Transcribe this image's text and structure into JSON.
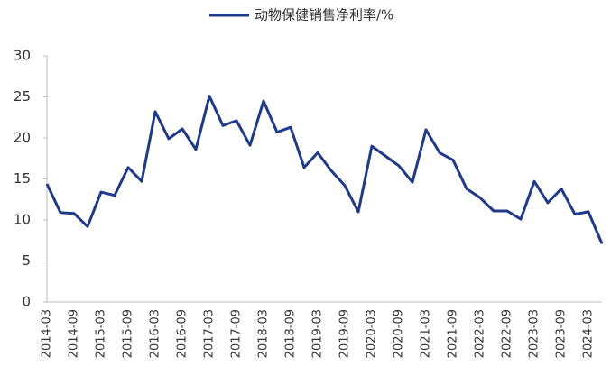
{
  "chart_data": {
    "type": "line",
    "categories": [
      "2014-03",
      null,
      "2014-09",
      null,
      "2015-03",
      null,
      "2015-09",
      null,
      "2016-03",
      null,
      "2016-09",
      null,
      "2017-03",
      null,
      "2017-09",
      null,
      "2018-03",
      null,
      "2018-09",
      null,
      "2019-03",
      null,
      "2019-09",
      null,
      "2020-03",
      null,
      "2020-09",
      null,
      "2021-03",
      null,
      "2021-09",
      null,
      "2022-03",
      null,
      "2022-09",
      null,
      "2023-03",
      null,
      "2023-09",
      null,
      "2024-03",
      null
    ],
    "series": [
      {
        "name": "动物保健销售净利率/%",
        "color": "#1f3a8a",
        "values": [
          14.4,
          10.9,
          10.8,
          9.2,
          13.4,
          13.0,
          16.4,
          14.7,
          23.2,
          19.9,
          21.1,
          18.6,
          25.1,
          21.5,
          22.1,
          19.1,
          24.5,
          20.7,
          21.3,
          16.4,
          18.2,
          16.0,
          14.2,
          11.0,
          19.0,
          17.8,
          16.6,
          14.6,
          21.0,
          18.2,
          17.3,
          13.8,
          12.7,
          11.1,
          11.1,
          10.1,
          14.7,
          12.1,
          13.8,
          10.7,
          11.0,
          7.1
        ]
      }
    ],
    "ylim": [
      0,
      30
    ],
    "yticks": [
      0,
      5,
      10,
      15,
      20,
      25,
      30
    ],
    "legend": "top"
  }
}
